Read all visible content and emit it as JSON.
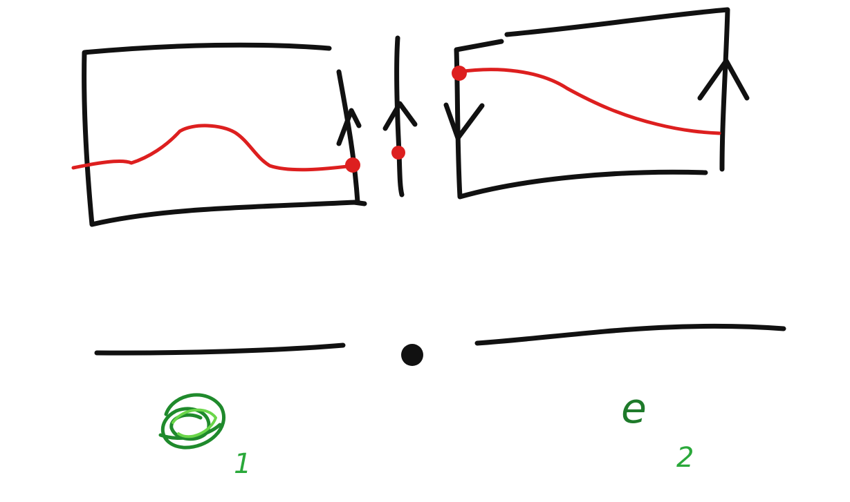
{
  "diagram": {
    "left_box_label": {
      "base": "e",
      "subscript": "1"
    },
    "right_box_label": {
      "base": "e",
      "subscript": "2"
    },
    "colors": {
      "ink": "#111111",
      "curve": "#dd1f1f",
      "label": "#1e7a2a",
      "label_highlight": "#6bd64a"
    }
  }
}
